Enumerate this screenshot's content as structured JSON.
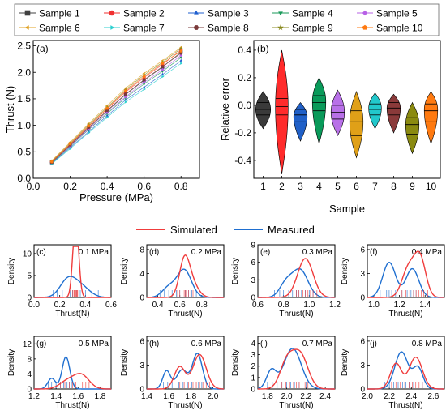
{
  "legend_top": {
    "items": [
      {
        "label": "Sample 1",
        "color": "#404040",
        "marker": "square"
      },
      {
        "label": "Sample 2",
        "color": "#f03030",
        "marker": "circle"
      },
      {
        "label": "Sample 3",
        "color": "#1f5fcf",
        "marker": "triangle-up"
      },
      {
        "label": "Sample 4",
        "color": "#1a9a5a",
        "marker": "triangle-down"
      },
      {
        "label": "Sample 5",
        "color": "#b760e6",
        "marker": "diamond"
      },
      {
        "label": "Sample 6",
        "color": "#e0a020",
        "marker": "triangle-left"
      },
      {
        "label": "Sample 7",
        "color": "#2ccfcf",
        "marker": "triangle-right"
      },
      {
        "label": "Sample 8",
        "color": "#7a3a3a",
        "marker": "hexagon"
      },
      {
        "label": "Sample 9",
        "color": "#8a8a20",
        "marker": "star"
      },
      {
        "label": "Sample 10",
        "color": "#ff7a10",
        "marker": "pentagon"
      }
    ]
  },
  "legend_mid": {
    "items": [
      {
        "label": "Simulated",
        "color": "#f03c3c"
      },
      {
        "label": "Measured",
        "color": "#1f6fd0"
      }
    ]
  },
  "chart_data": [
    {
      "panel": "(a)",
      "type": "scatter",
      "xlabel": "Pressure (MPa)",
      "ylabel": "Thrust (N)",
      "xlim": [
        0.0,
        0.9
      ],
      "ylim": [
        0.0,
        2.6
      ],
      "xticks": [
        "0.0",
        "0.2",
        "0.4",
        "0.6",
        "0.8"
      ],
      "yticks": [
        "0.0",
        "0.5",
        "1.0",
        "1.5",
        "2.0",
        "2.5"
      ],
      "x": [
        0.1,
        0.2,
        0.3,
        0.4,
        0.5,
        0.6,
        0.7,
        0.8
      ],
      "series": [
        {
          "name": "Sample 1",
          "values": [
            0.3,
            0.62,
            0.95,
            1.27,
            1.58,
            1.85,
            2.1,
            2.38
          ]
        },
        {
          "name": "Sample 2",
          "values": [
            0.31,
            0.64,
            0.98,
            1.31,
            1.63,
            1.9,
            2.15,
            2.42
          ]
        },
        {
          "name": "Sample 3",
          "values": [
            0.28,
            0.58,
            0.88,
            1.18,
            1.48,
            1.72,
            1.96,
            2.22
          ]
        },
        {
          "name": "Sample 4",
          "values": [
            0.29,
            0.6,
            0.92,
            1.22,
            1.52,
            1.78,
            2.02,
            2.28
          ]
        },
        {
          "name": "Sample 5",
          "values": [
            0.3,
            0.61,
            0.93,
            1.24,
            1.54,
            1.81,
            2.05,
            2.32
          ]
        },
        {
          "name": "Sample 6",
          "values": [
            0.33,
            0.68,
            1.03,
            1.37,
            1.7,
            1.98,
            2.22,
            2.47
          ]
        },
        {
          "name": "Sample 7",
          "values": [
            0.27,
            0.56,
            0.86,
            1.15,
            1.44,
            1.68,
            1.92,
            2.17
          ]
        },
        {
          "name": "Sample 8",
          "values": [
            0.3,
            0.63,
            0.96,
            1.28,
            1.59,
            1.86,
            2.11,
            2.36
          ]
        },
        {
          "name": "Sample 9",
          "values": [
            0.32,
            0.66,
            1.01,
            1.34,
            1.67,
            1.95,
            2.19,
            2.45
          ]
        },
        {
          "name": "Sample 10",
          "values": [
            0.31,
            0.65,
            0.99,
            1.32,
            1.65,
            1.92,
            2.17,
            2.4
          ]
        }
      ]
    },
    {
      "panel": "(b)",
      "type": "violin",
      "xlabel": "Sample",
      "ylabel": "Relative error",
      "xlim": [
        0.5,
        10.5
      ],
      "ylim": [
        -0.53,
        0.47
      ],
      "yticks": [
        "-0.4",
        "-0.2",
        "0.0",
        "0.2",
        "0.4"
      ],
      "categories": [
        "1",
        "2",
        "3",
        "4",
        "5",
        "6",
        "7",
        "8",
        "9",
        "10"
      ],
      "violins": [
        {
          "min": -0.17,
          "max": 0.1,
          "mode": -0.03,
          "width": 0.4,
          "quartiles": [
            -0.07,
            -0.03,
            0.02
          ]
        },
        {
          "min": -0.5,
          "max": 0.4,
          "mode": -0.01,
          "width": 0.34,
          "quartiles": [
            -0.07,
            -0.01,
            0.05
          ]
        },
        {
          "min": -0.26,
          "max": 0.02,
          "mode": -0.08,
          "width": 0.36,
          "quartiles": [
            -0.12,
            -0.07,
            -0.03
          ]
        },
        {
          "min": -0.28,
          "max": 0.2,
          "mode": 0.03,
          "width": 0.36,
          "quartiles": [
            -0.04,
            0.02,
            0.07
          ]
        },
        {
          "min": -0.22,
          "max": 0.11,
          "mode": -0.05,
          "width": 0.36,
          "quartiles": [
            -0.1,
            -0.05,
            0.0
          ]
        },
        {
          "min": -0.38,
          "max": 0.1,
          "mode": -0.12,
          "width": 0.36,
          "quartiles": [
            -0.22,
            -0.12,
            -0.04
          ]
        },
        {
          "min": -0.17,
          "max": 0.09,
          "mode": -0.02,
          "width": 0.34,
          "quartiles": [
            -0.07,
            -0.03,
            0.01
          ]
        },
        {
          "min": -0.2,
          "max": 0.08,
          "mode": -0.02,
          "width": 0.36,
          "quartiles": [
            -0.07,
            -0.02,
            0.02
          ]
        },
        {
          "min": -0.35,
          "max": 0.02,
          "mode": -0.14,
          "width": 0.36,
          "quartiles": [
            -0.21,
            -0.14,
            -0.09
          ]
        },
        {
          "min": -0.28,
          "max": 0.1,
          "mode": -0.03,
          "width": 0.36,
          "quartiles": [
            -0.12,
            -0.04,
            0.01
          ]
        }
      ]
    },
    {
      "panel": "(c)",
      "type": "density",
      "annotation": "0.1 MPa",
      "xlabel": "Thrust(N)",
      "ylabel": "Density",
      "xlim": [
        0.0,
        0.6
      ],
      "ylim": [
        0,
        12
      ],
      "xticks": [
        "0.0",
        "0.2",
        "0.4",
        "0.6"
      ],
      "yticks": [
        "0",
        "5",
        "10"
      ],
      "simulated": {
        "peaks": [
          {
            "mu": 0.325,
            "sigma": 0.022,
            "w": 1
          }
        ],
        "ticks": [
          0.3,
          0.31,
          0.315,
          0.32,
          0.325,
          0.33,
          0.335,
          0.34,
          0.35
        ]
      },
      "measured": {
        "peaks": [
          {
            "mu": 0.26,
            "sigma": 0.06,
            "w": 0.55
          },
          {
            "mu": 0.36,
            "sigma": 0.07,
            "w": 0.45
          }
        ],
        "ticks": [
          0.15,
          0.18,
          0.22,
          0.25,
          0.28,
          0.3,
          0.33,
          0.36,
          0.4,
          0.45,
          0.5
        ]
      }
    },
    {
      "panel": "(d)",
      "type": "density",
      "annotation": "0.2 MPa",
      "xlabel": "Thrust(N)",
      "ylabel": "Density",
      "xlim": [
        0.3,
        1.0
      ],
      "ylim": [
        0,
        8.8
      ],
      "xticks": [
        "0.4",
        "0.6",
        "0.8"
      ],
      "yticks": [
        "0",
        "4",
        "8"
      ],
      "simulated": {
        "peaks": [
          {
            "mu": 0.64,
            "sigma": 0.045,
            "w": 0.6
          },
          {
            "mu": 0.7,
            "sigma": 0.06,
            "w": 0.4
          }
        ],
        "ticks": [
          0.58,
          0.6,
          0.62,
          0.64,
          0.65,
          0.66,
          0.68,
          0.7,
          0.72
        ]
      },
      "measured": {
        "peaks": [
          {
            "mu": 0.5,
            "sigma": 0.06,
            "w": 0.25
          },
          {
            "mu": 0.64,
            "sigma": 0.065,
            "w": 0.75
          }
        ],
        "ticks": [
          0.42,
          0.46,
          0.5,
          0.53,
          0.57,
          0.6,
          0.62,
          0.65,
          0.68,
          0.71,
          0.75
        ]
      }
    },
    {
      "panel": "(e)",
      "type": "density",
      "annotation": "0.3 MPa",
      "xlabel": "Thrust(N)",
      "ylabel": "Density",
      "xlim": [
        0.6,
        1.2
      ],
      "ylim": [
        0,
        9
      ],
      "xticks": [
        "0.6",
        "0.8",
        "1.0",
        "1.2"
      ],
      "yticks": [
        "0",
        "3",
        "6",
        "9"
      ],
      "simulated": {
        "peaks": [
          {
            "mu": 0.97,
            "sigma": 0.06,
            "w": 1
          }
        ],
        "ticks": [
          0.88,
          0.9,
          0.92,
          0.95,
          0.97,
          0.99,
          1.01,
          1.03,
          1.06
        ]
      },
      "measured": {
        "peaks": [
          {
            "mu": 0.82,
            "sigma": 0.05,
            "w": 0.3
          },
          {
            "mu": 0.93,
            "sigma": 0.06,
            "w": 0.7
          }
        ],
        "ticks": [
          0.73,
          0.77,
          0.8,
          0.84,
          0.87,
          0.9,
          0.92,
          0.94,
          0.97,
          1.0,
          1.03
        ]
      }
    },
    {
      "panel": "(f)",
      "type": "density",
      "annotation": "0.4 MPa",
      "xlabel": "Thrust(N)",
      "ylabel": "Density",
      "xlim": [
        0.95,
        1.55
      ],
      "ylim": [
        0,
        6.6
      ],
      "xticks": [
        "1.0",
        "1.2",
        "1.4"
      ],
      "yticks": [
        "0",
        "3",
        "6"
      ],
      "simulated": {
        "peaks": [
          {
            "mu": 1.27,
            "sigma": 0.05,
            "w": 0.45
          },
          {
            "mu": 1.36,
            "sigma": 0.045,
            "w": 0.55
          }
        ],
        "ticks": [
          1.18,
          1.22,
          1.25,
          1.28,
          1.31,
          1.33,
          1.35,
          1.37,
          1.39,
          1.42
        ]
      },
      "measured": {
        "peaks": [
          {
            "mu": 1.12,
            "sigma": 0.05,
            "w": 0.55
          },
          {
            "mu": 1.3,
            "sigma": 0.05,
            "w": 0.45
          }
        ],
        "ticks": [
          1.05,
          1.08,
          1.1,
          1.12,
          1.14,
          1.17,
          1.22,
          1.26,
          1.29,
          1.31,
          1.33
        ]
      }
    },
    {
      "panel": "(g)",
      "type": "density",
      "annotation": "0.5 MPa",
      "xlabel": "Thrust(N)",
      "ylabel": "Density",
      "xlim": [
        1.2,
        1.9
      ],
      "ylim": [
        0,
        14
      ],
      "xticks": [
        "1.2",
        "1.4",
        "1.6",
        "1.8"
      ],
      "yticks": [
        "0",
        "4",
        "8",
        "12"
      ],
      "simulated": {
        "peaks": [
          {
            "mu": 1.5,
            "sigma": 0.07,
            "w": 0.35
          },
          {
            "mu": 1.63,
            "sigma": 0.07,
            "w": 0.65
          }
        ],
        "ticks": [
          1.44,
          1.48,
          1.52,
          1.55,
          1.58,
          1.61,
          1.64,
          1.67,
          1.7
        ]
      },
      "measured": {
        "peaks": [
          {
            "mu": 1.36,
            "sigma": 0.035,
            "w": 0.25
          },
          {
            "mu": 1.49,
            "sigma": 0.035,
            "w": 0.75
          }
        ],
        "ticks": [
          1.33,
          1.36,
          1.4,
          1.44,
          1.47,
          1.49,
          1.5,
          1.52,
          1.54,
          1.57
        ]
      }
    },
    {
      "panel": "(h)",
      "type": "density",
      "annotation": "0.6 MPa",
      "xlabel": "Thrust(N)",
      "ylabel": "Density",
      "xlim": [
        1.4,
        2.1
      ],
      "ylim": [
        0,
        6.6
      ],
      "xticks": [
        "1.4",
        "1.6",
        "1.8",
        "2.0"
      ],
      "yticks": [
        "0",
        "3",
        "6"
      ],
      "simulated": {
        "peaks": [
          {
            "mu": 1.7,
            "sigma": 0.05,
            "w": 0.35
          },
          {
            "mu": 1.88,
            "sigma": 0.06,
            "w": 0.65
          }
        ],
        "ticks": [
          1.7,
          1.74,
          1.78,
          1.82,
          1.85,
          1.88,
          1.91,
          1.94,
          1.97
        ]
      },
      "measured": {
        "peaks": [
          {
            "mu": 1.58,
            "sigma": 0.035,
            "w": 0.2
          },
          {
            "mu": 1.72,
            "sigma": 0.05,
            "w": 0.3
          },
          {
            "mu": 1.86,
            "sigma": 0.045,
            "w": 0.5
          }
        ],
        "ticks": [
          1.55,
          1.59,
          1.63,
          1.69,
          1.73,
          1.77,
          1.81,
          1.84,
          1.87,
          1.9
        ]
      }
    },
    {
      "panel": "(i)",
      "type": "density",
      "annotation": "0.7 MPa",
      "xlabel": "Thrust(N)",
      "ylabel": "Density",
      "xlim": [
        1.7,
        2.5
      ],
      "ylim": [
        0,
        4.6
      ],
      "xticks": [
        "1.8",
        "2.0",
        "2.2",
        "2.4"
      ],
      "yticks": [
        "0",
        "1",
        "2",
        "3",
        "4"
      ],
      "simulated": {
        "peaks": [
          {
            "mu": 2.0,
            "sigma": 0.07,
            "w": 0.4
          },
          {
            "mu": 2.14,
            "sigma": 0.08,
            "w": 0.6
          }
        ],
        "ticks": [
          1.95,
          1.99,
          2.03,
          2.07,
          2.1,
          2.13,
          2.16,
          2.19,
          2.22,
          2.25
        ]
      },
      "measured": {
        "peaks": [
          {
            "mu": 1.84,
            "sigma": 0.05,
            "w": 0.2
          },
          {
            "mu": 2.06,
            "sigma": 0.09,
            "w": 0.8
          }
        ],
        "ticks": [
          1.8,
          1.85,
          1.9,
          1.95,
          2.0,
          2.04,
          2.08,
          2.12,
          2.16,
          2.2
        ]
      }
    },
    {
      "panel": "(j)",
      "type": "density",
      "annotation": "0.8 MPa",
      "xlabel": "Thrust(N)",
      "ylabel": "Density",
      "xlim": [
        2.0,
        2.7
      ],
      "ylim": [
        0,
        6.6
      ],
      "xticks": [
        "2.0",
        "2.2",
        "2.4",
        "2.6"
      ],
      "yticks": [
        "0",
        "3",
        "6"
      ],
      "simulated": {
        "peaks": [
          {
            "mu": 2.26,
            "sigma": 0.05,
            "w": 0.4
          },
          {
            "mu": 2.44,
            "sigma": 0.06,
            "w": 0.6
          }
        ],
        "ticks": [
          2.22,
          2.26,
          2.3,
          2.34,
          2.38,
          2.41,
          2.44,
          2.47,
          2.5
        ]
      },
      "measured": {
        "peaks": [
          {
            "mu": 2.31,
            "sigma": 0.06,
            "w": 0.7
          },
          {
            "mu": 2.46,
            "sigma": 0.045,
            "w": 0.3
          }
        ],
        "ticks": [
          2.16,
          2.2,
          2.24,
          2.28,
          2.32,
          2.35,
          2.38,
          2.42,
          2.46,
          2.5
        ]
      }
    }
  ]
}
